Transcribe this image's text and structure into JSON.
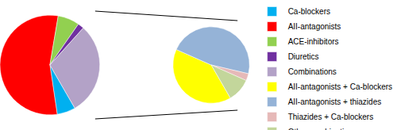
{
  "chart_data": [
    {
      "type": "pie",
      "categories": [
        "Ca-blockers",
        "AII-antagonists",
        "ACE-inhibitors",
        "Diuretics",
        "Combinations"
      ],
      "values": [
        6,
        55,
        7,
        2,
        30
      ],
      "colors": [
        "#00b0f0",
        "#ff0000",
        "#92d050",
        "#7030a0",
        "#b3a2c7"
      ],
      "legend": "right",
      "data_labels": false
    },
    {
      "type": "pie",
      "categories": [
        "AII-antagonists + Ca-blockers",
        "AII-antagonists + thiazides",
        "Thiazides + Ca-blockers",
        "Other combinations"
      ],
      "values": [
        40,
        47,
        3,
        10
      ],
      "colors": [
        "#ffff00",
        "#95b3d7",
        "#e6b9b8",
        "#c3d69b"
      ],
      "legend": "right",
      "data_labels": false
    }
  ]
}
